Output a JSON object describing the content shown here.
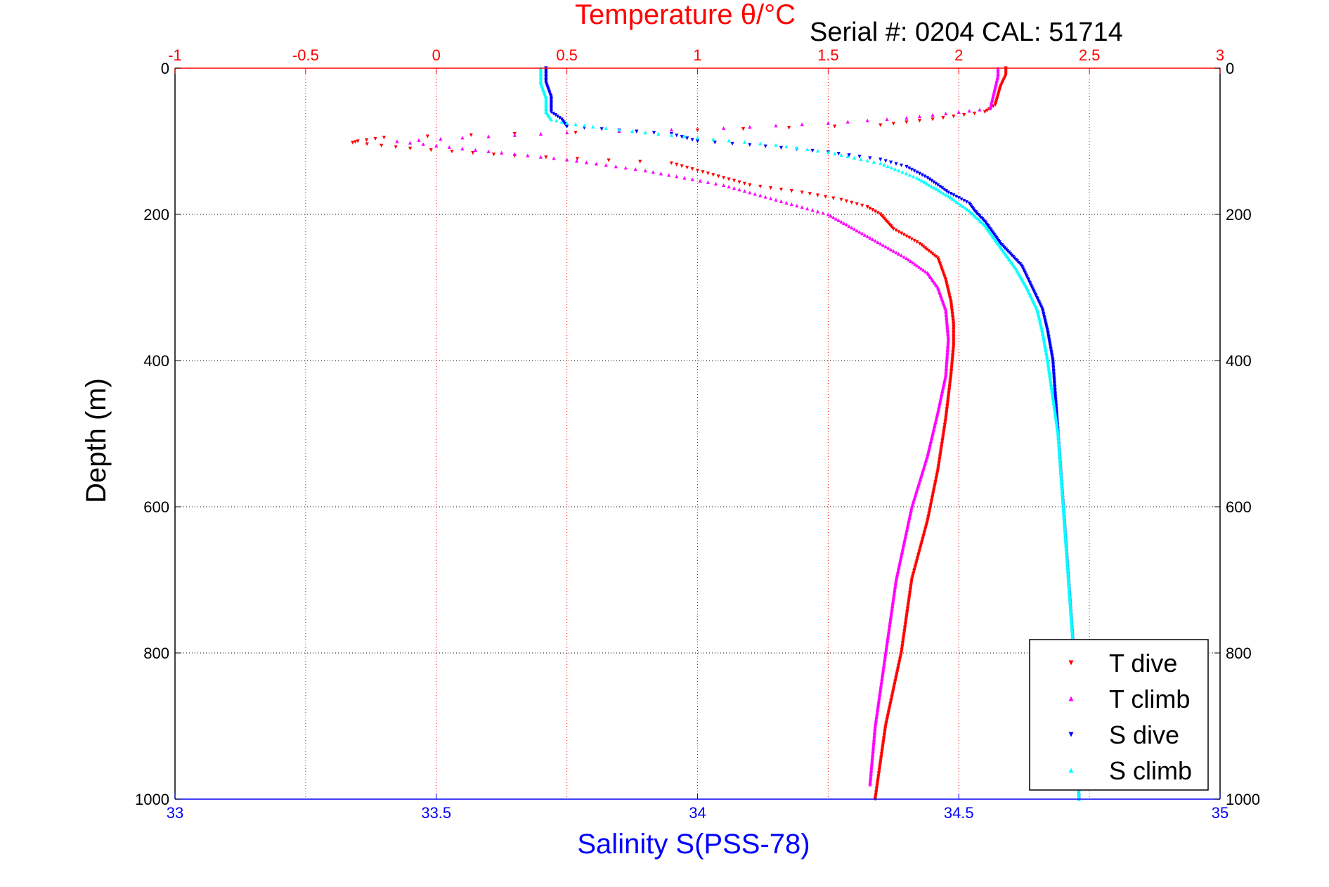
{
  "chart_data": {
    "type": "scatter",
    "title": "Temperature θ/°C",
    "subtitle": "Serial #: 0204   CAL: 51714",
    "xlabel_top": "Temperature θ/°C",
    "xlabel_bottom": "Salinity S(PSS-78)",
    "ylabel": "Depth (m)",
    "temperature_axis": {
      "range": [
        -1,
        3
      ],
      "ticks": [
        "-1",
        "-0.5",
        "0",
        "0.5",
        "1",
        "1.5",
        "2",
        "2.5",
        "3"
      ],
      "color": "#ff0000"
    },
    "salinity_axis": {
      "range": [
        33,
        35
      ],
      "ticks": [
        "33",
        "33.5",
        "34",
        "34.5",
        "35"
      ],
      "color": "#0000ff"
    },
    "depth_axis": {
      "range": [
        0,
        1000
      ],
      "reversed": true,
      "ticks": [
        "0",
        "200",
        "400",
        "600",
        "800",
        "1000"
      ]
    },
    "grid": true,
    "legend_position": "bottom-right",
    "series": [
      {
        "name": "T dive",
        "axis": "temperature",
        "color": "#ff0000",
        "marker": "triangle-down",
        "points": [
          [
            2.18,
            0
          ],
          [
            2.18,
            10
          ],
          [
            2.16,
            25
          ],
          [
            2.14,
            50
          ],
          [
            2.1,
            60
          ],
          [
            1.9,
            70
          ],
          [
            1.7,
            78
          ],
          [
            1.0,
            85
          ],
          [
            0.3,
            90
          ],
          [
            -0.2,
            95
          ],
          [
            -0.3,
            100
          ],
          [
            -0.32,
            102
          ],
          [
            -0.1,
            110
          ],
          [
            0.3,
            120
          ],
          [
            0.9,
            130
          ],
          [
            1.0,
            140
          ],
          [
            1.2,
            160
          ],
          [
            1.4,
            170
          ],
          [
            1.55,
            180
          ],
          [
            1.65,
            190
          ],
          [
            1.7,
            200
          ],
          [
            1.75,
            220
          ],
          [
            1.85,
            240
          ],
          [
            1.92,
            260
          ],
          [
            1.95,
            290
          ],
          [
            1.97,
            320
          ],
          [
            1.98,
            350
          ],
          [
            1.98,
            380
          ],
          [
            1.97,
            420
          ],
          [
            1.95,
            480
          ],
          [
            1.92,
            550
          ],
          [
            1.88,
            620
          ],
          [
            1.82,
            700
          ],
          [
            1.78,
            800
          ],
          [
            1.72,
            900
          ],
          [
            1.7,
            950
          ],
          [
            1.68,
            1000
          ]
        ]
      },
      {
        "name": "T climb",
        "axis": "temperature",
        "color": "#ff00ff",
        "marker": "triangle-up",
        "points": [
          [
            2.15,
            0
          ],
          [
            2.15,
            10
          ],
          [
            2.14,
            25
          ],
          [
            2.13,
            40
          ],
          [
            2.12,
            55
          ],
          [
            2.0,
            60
          ],
          [
            1.8,
            68
          ],
          [
            1.5,
            75
          ],
          [
            1.1,
            82
          ],
          [
            0.5,
            88
          ],
          [
            0.1,
            95
          ],
          [
            -0.15,
            100
          ],
          [
            0.1,
            110
          ],
          [
            0.5,
            125
          ],
          [
            0.8,
            140
          ],
          [
            1.1,
            160
          ],
          [
            1.3,
            180
          ],
          [
            1.5,
            200
          ],
          [
            1.6,
            220
          ],
          [
            1.7,
            240
          ],
          [
            1.8,
            260
          ],
          [
            1.88,
            280
          ],
          [
            1.92,
            300
          ],
          [
            1.95,
            330
          ],
          [
            1.96,
            370
          ],
          [
            1.95,
            420
          ],
          [
            1.92,
            470
          ],
          [
            1.88,
            530
          ],
          [
            1.82,
            600
          ],
          [
            1.76,
            700
          ],
          [
            1.72,
            800
          ],
          [
            1.68,
            900
          ],
          [
            1.66,
            980
          ]
        ]
      },
      {
        "name": "S dive",
        "axis": "salinity",
        "color": "#0000ff",
        "marker": "triangle-down",
        "points": [
          [
            33.71,
            0
          ],
          [
            33.71,
            20
          ],
          [
            33.72,
            40
          ],
          [
            33.72,
            60
          ],
          [
            33.74,
            70
          ],
          [
            33.75,
            80
          ],
          [
            33.85,
            85
          ],
          [
            33.95,
            90
          ],
          [
            34.0,
            100
          ],
          [
            34.1,
            105
          ],
          [
            34.25,
            115
          ],
          [
            34.35,
            125
          ],
          [
            34.4,
            135
          ],
          [
            34.44,
            150
          ],
          [
            34.48,
            170
          ],
          [
            34.52,
            185
          ],
          [
            34.53,
            195
          ],
          [
            34.55,
            210
          ],
          [
            34.58,
            240
          ],
          [
            34.62,
            270
          ],
          [
            34.64,
            300
          ],
          [
            34.66,
            330
          ],
          [
            34.67,
            360
          ],
          [
            34.68,
            400
          ],
          [
            34.685,
            450
          ],
          [
            34.69,
            500
          ],
          [
            34.7,
            600
          ],
          [
            34.71,
            700
          ],
          [
            34.72,
            800
          ],
          [
            34.725,
            900
          ],
          [
            34.73,
            1000
          ]
        ]
      },
      {
        "name": "S climb",
        "axis": "salinity",
        "color": "#00ffff",
        "marker": "triangle-up",
        "points": [
          [
            33.7,
            0
          ],
          [
            33.7,
            20
          ],
          [
            33.71,
            40
          ],
          [
            33.71,
            60
          ],
          [
            33.72,
            70
          ],
          [
            33.75,
            75
          ],
          [
            33.8,
            80
          ],
          [
            33.9,
            88
          ],
          [
            34.0,
            95
          ],
          [
            34.15,
            105
          ],
          [
            34.25,
            115
          ],
          [
            34.35,
            130
          ],
          [
            34.42,
            150
          ],
          [
            34.48,
            175
          ],
          [
            34.52,
            195
          ],
          [
            34.55,
            215
          ],
          [
            34.58,
            245
          ],
          [
            34.61,
            275
          ],
          [
            34.63,
            300
          ],
          [
            34.65,
            330
          ],
          [
            34.66,
            360
          ],
          [
            34.67,
            400
          ],
          [
            34.68,
            450
          ],
          [
            34.69,
            500
          ],
          [
            34.7,
            600
          ],
          [
            34.71,
            700
          ],
          [
            34.72,
            800
          ],
          [
            34.725,
            900
          ],
          [
            34.73,
            1000
          ]
        ]
      }
    ]
  }
}
